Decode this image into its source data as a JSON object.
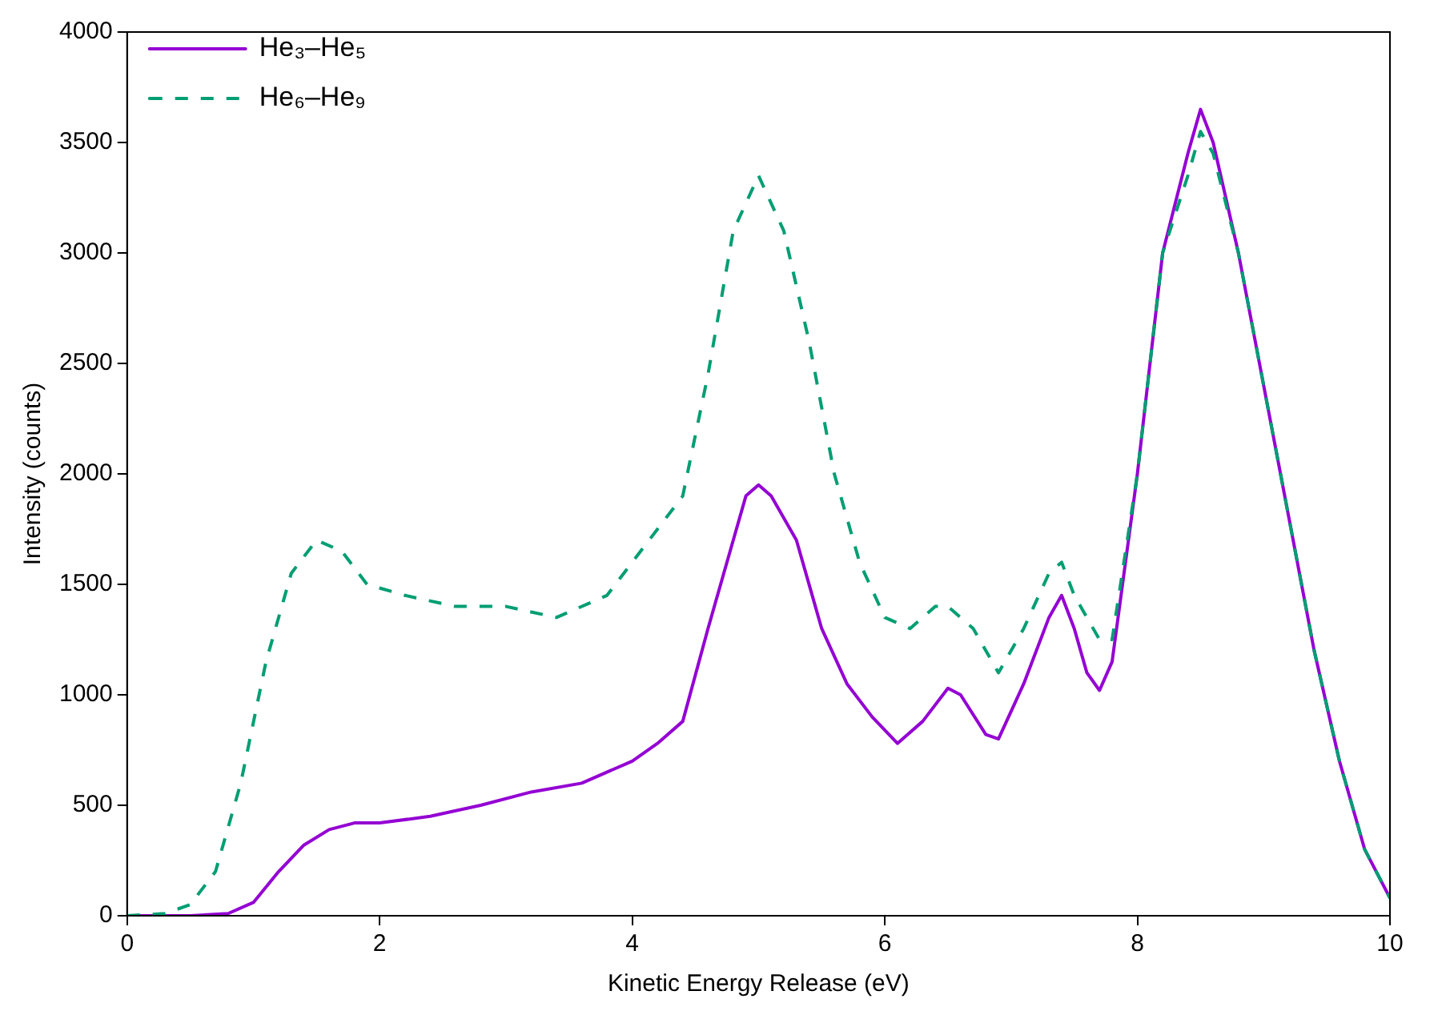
{
  "chart_data": {
    "type": "line",
    "xlabel": "Kinetic Energy Release (eV)",
    "ylabel": "Intensity (counts)",
    "xlim": [
      0,
      10
    ],
    "xticks": [
      0,
      2,
      4,
      6,
      8,
      10
    ],
    "ylim": [
      0,
      4000
    ],
    "yticks": [
      0,
      500,
      1000,
      1500,
      2000,
      2500,
      3000,
      3500,
      4000
    ],
    "grid": false,
    "legend": "top left",
    "marker": "none",
    "series": [
      {
        "name": "He₃–He₅",
        "color": "#9400d3",
        "line_style": "solid",
        "x": [
          0,
          0.5,
          0.8,
          1.0,
          1.2,
          1.4,
          1.6,
          1.8,
          2.0,
          2.4,
          2.8,
          3.2,
          3.6,
          4.0,
          4.2,
          4.4,
          4.6,
          4.8,
          4.9,
          5.0,
          5.1,
          5.3,
          5.5,
          5.7,
          5.9,
          6.1,
          6.3,
          6.5,
          6.6,
          6.8,
          6.9,
          7.1,
          7.3,
          7.4,
          7.5,
          7.6,
          7.7,
          7.8,
          8.0,
          8.2,
          8.4,
          8.5,
          8.6,
          8.8,
          9.0,
          9.2,
          9.4,
          9.6,
          9.8,
          10
        ],
        "values": [
          0,
          0,
          10,
          60,
          200,
          320,
          390,
          420,
          420,
          450,
          500,
          560,
          600,
          700,
          780,
          880,
          1300,
          1700,
          1900,
          1950,
          1900,
          1700,
          1300,
          1050,
          900,
          780,
          880,
          1030,
          1000,
          820,
          800,
          1050,
          1350,
          1450,
          1300,
          1100,
          1020,
          1150,
          2000,
          3000,
          3450,
          3650,
          3500,
          3000,
          2400,
          1800,
          1200,
          700,
          300,
          80
        ]
      },
      {
        "name": "He₆–He₉",
        "color": "#009e73",
        "line_style": "dashed",
        "x": [
          0,
          0.3,
          0.5,
          0.7,
          0.9,
          1.1,
          1.3,
          1.5,
          1.7,
          1.9,
          2.2,
          2.6,
          3.0,
          3.4,
          3.8,
          4.2,
          4.4,
          4.6,
          4.8,
          5.0,
          5.2,
          5.4,
          5.6,
          5.8,
          6.0,
          6.2,
          6.4,
          6.5,
          6.7,
          6.9,
          7.1,
          7.3,
          7.4,
          7.5,
          7.7,
          7.8,
          8.0,
          8.2,
          8.4,
          8.5,
          8.6,
          8.8,
          9.0,
          9.2,
          9.4,
          9.6,
          9.8,
          10
        ],
        "values": [
          0,
          10,
          50,
          200,
          600,
          1150,
          1550,
          1700,
          1650,
          1500,
          1450,
          1400,
          1400,
          1350,
          1450,
          1750,
          1900,
          2450,
          3100,
          3350,
          3100,
          2600,
          2000,
          1600,
          1350,
          1300,
          1400,
          1400,
          1300,
          1100,
          1300,
          1550,
          1600,
          1450,
          1250,
          1250,
          2000,
          3000,
          3350,
          3550,
          3450,
          3000,
          2400,
          1800,
          1200,
          700,
          300,
          80
        ]
      }
    ]
  }
}
